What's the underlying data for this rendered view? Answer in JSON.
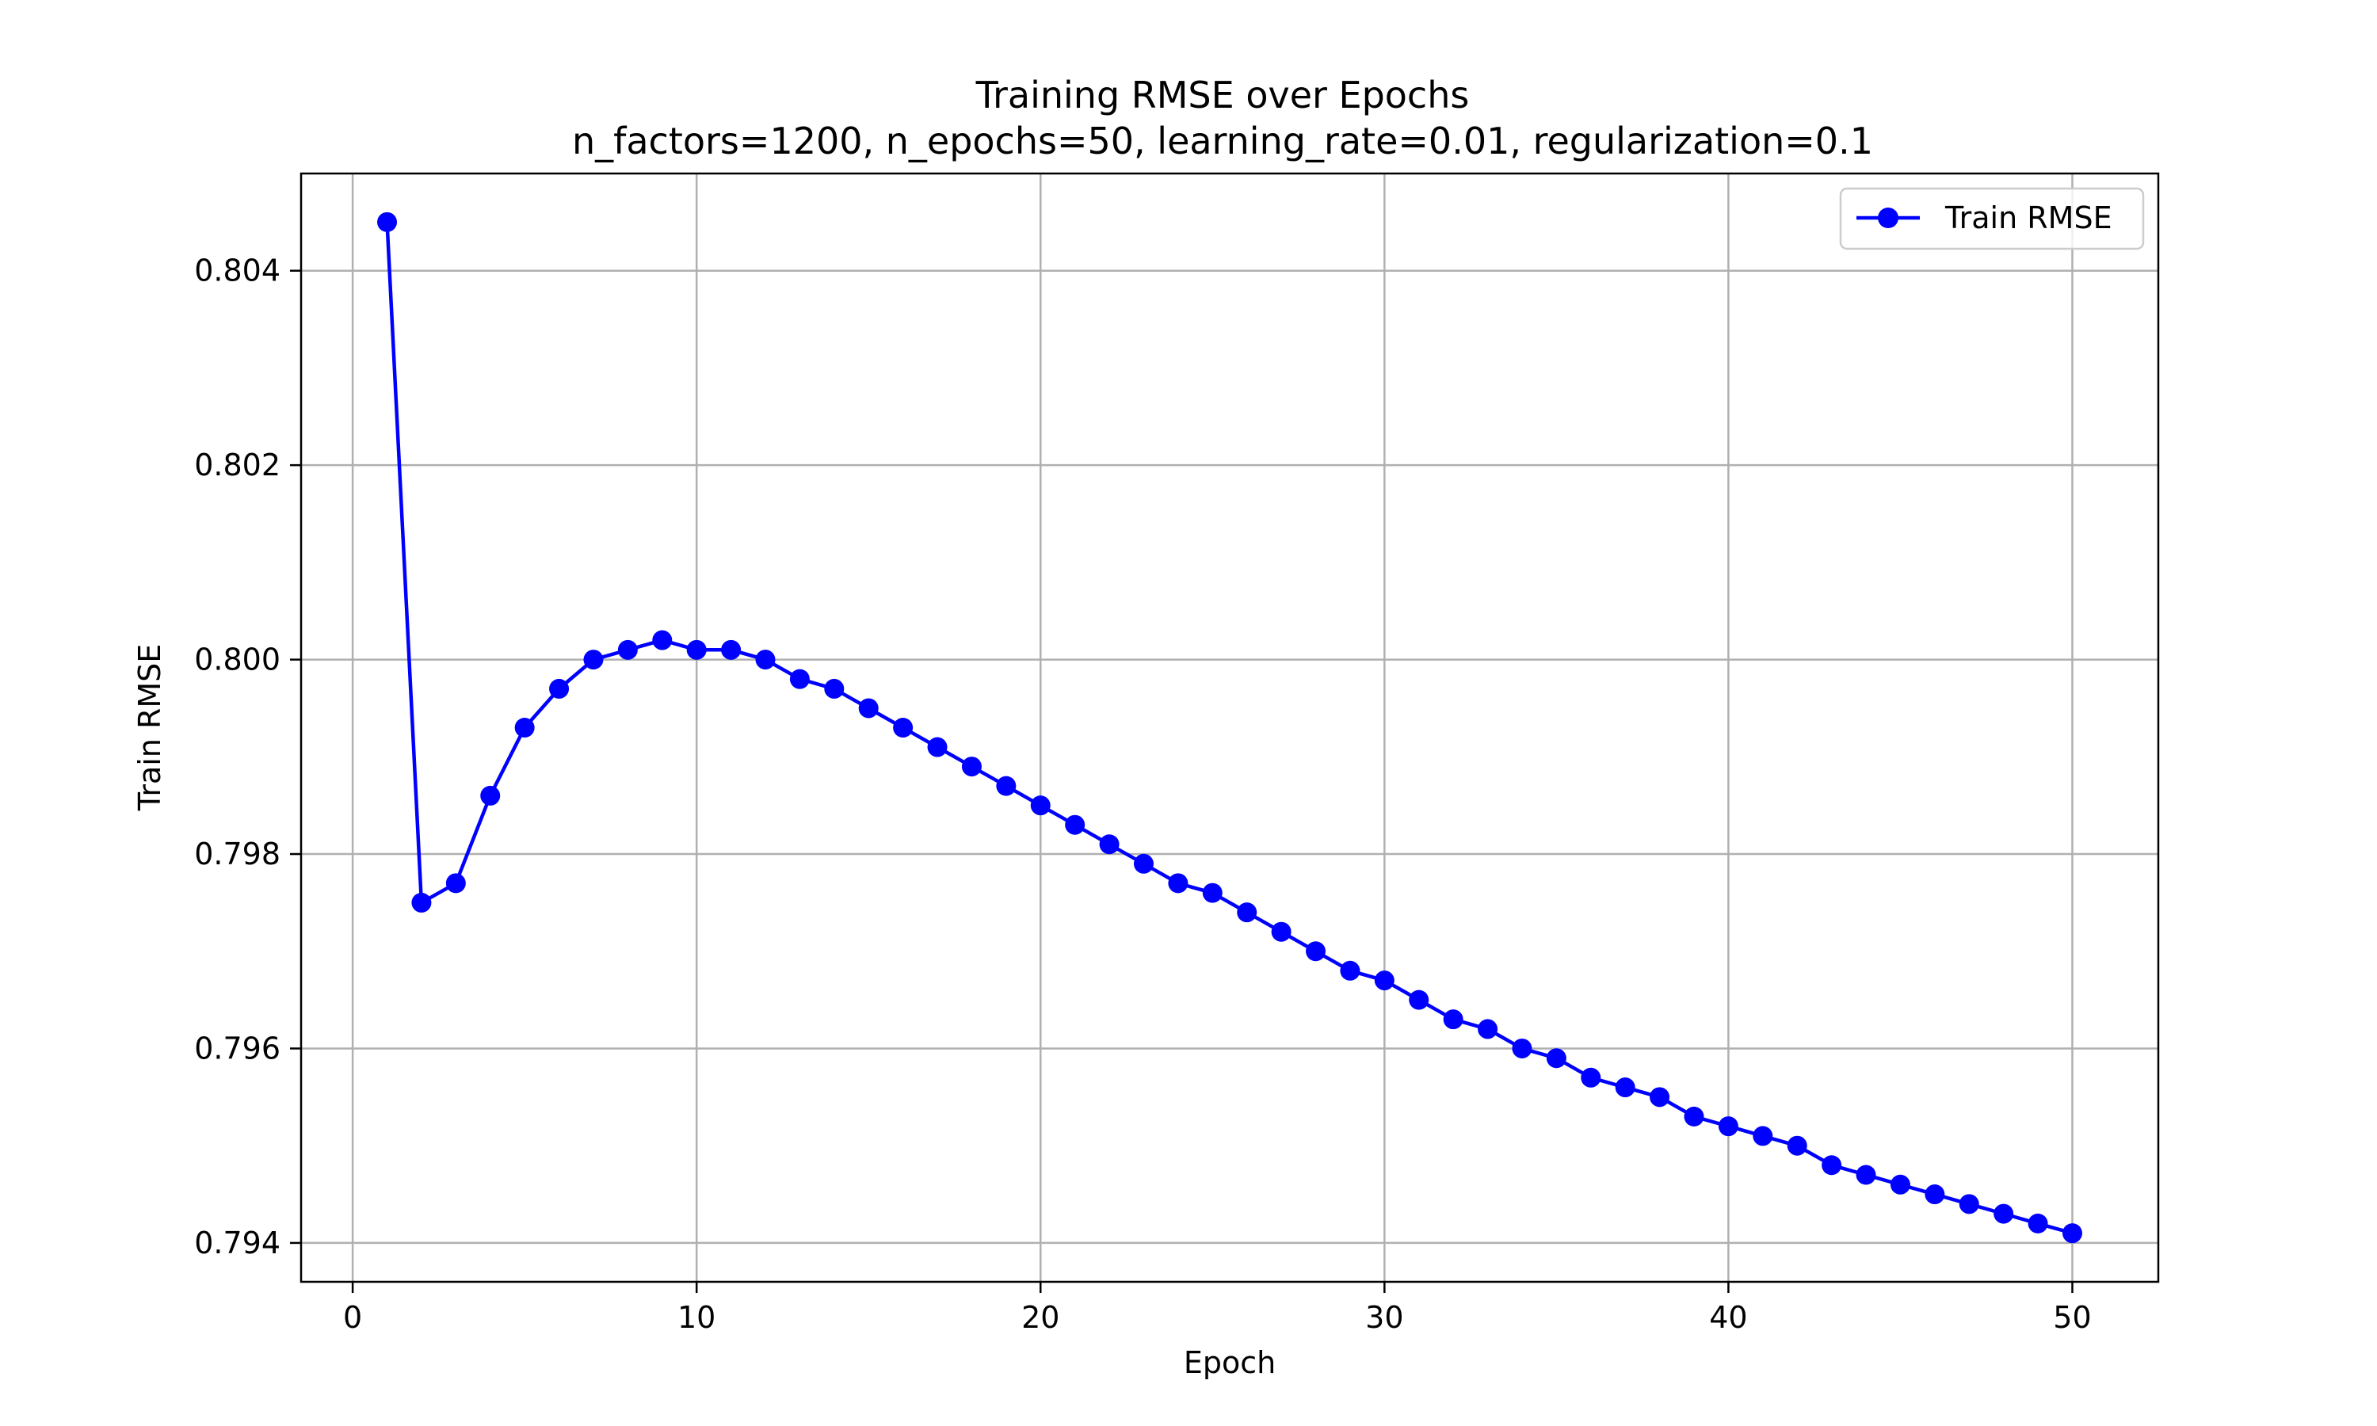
{
  "chart_data": {
    "type": "line",
    "title": "Training RMSE over Epochs",
    "subtitle": "n_factors=1200, n_epochs=50, learning_rate=0.01, regularization=0.1",
    "xlabel": "Epoch",
    "ylabel": "Train RMSE",
    "xlim": [
      -1.5,
      52.5
    ],
    "ylim": [
      0.7936,
      0.805
    ],
    "x_ticks": [
      0,
      10,
      20,
      30,
      40,
      50
    ],
    "x_tick_labels": [
      "0",
      "10",
      "20",
      "30",
      "40",
      "50"
    ],
    "y_ticks": [
      0.794,
      0.796,
      0.798,
      0.8,
      0.802,
      0.804
    ],
    "y_tick_labels": [
      "0.794",
      "0.796",
      "0.798",
      "0.800",
      "0.802",
      "0.804"
    ],
    "grid": true,
    "legend_position": "top-right",
    "series": [
      {
        "name": "Train RMSE",
        "color": "#0000ff",
        "marker": "circle",
        "x": [
          1,
          2,
          3,
          4,
          5,
          6,
          7,
          8,
          9,
          10,
          11,
          12,
          13,
          14,
          15,
          16,
          17,
          18,
          19,
          20,
          21,
          22,
          23,
          24,
          25,
          26,
          27,
          28,
          29,
          30,
          31,
          32,
          33,
          34,
          35,
          36,
          37,
          38,
          39,
          40,
          41,
          42,
          43,
          44,
          45,
          46,
          47,
          48,
          49,
          50
        ],
        "y": [
          0.8045,
          0.7975,
          0.7977,
          0.7986,
          0.7993,
          0.7997,
          0.8,
          0.8001,
          0.8002,
          0.8001,
          0.8001,
          0.8,
          0.7998,
          0.7997,
          0.7995,
          0.7993,
          0.7991,
          0.7989,
          0.7987,
          0.7985,
          0.7983,
          0.7981,
          0.7979,
          0.7977,
          0.7976,
          0.7974,
          0.7972,
          0.797,
          0.7968,
          0.7967,
          0.7965,
          0.7963,
          0.7962,
          0.796,
          0.7959,
          0.7957,
          0.7956,
          0.7955,
          0.7953,
          0.7952,
          0.7951,
          0.795,
          0.7948,
          0.7947,
          0.7946,
          0.7945,
          0.7944,
          0.7943,
          0.7942,
          0.7941
        ]
      }
    ]
  }
}
